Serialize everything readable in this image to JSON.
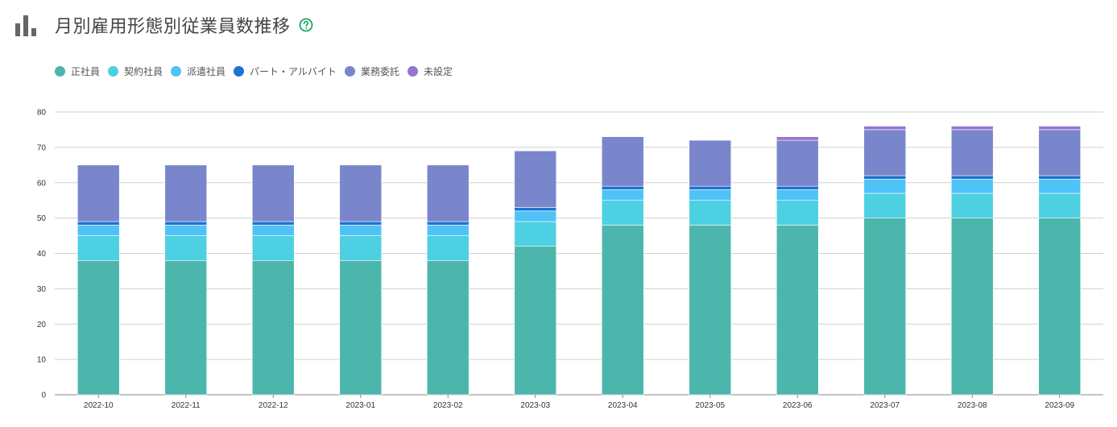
{
  "header": {
    "title": "月別雇用形態別従業員数推移",
    "chart_icon": "bar-chart-icon",
    "help_icon": "question-circle-icon"
  },
  "colors": {
    "正社員": "#4db6ac",
    "契約社員": "#4dd0e1",
    "派遣社員": "#4fc3f7",
    "パート・アルバイト": "#1e73d2",
    "業務委託": "#7986cb",
    "未設定": "#9575cd"
  },
  "chart_data": {
    "type": "bar",
    "stacked": true,
    "title": "月別雇用形態別従業員数推移",
    "xlabel": "",
    "ylabel": "",
    "ylim": [
      0,
      80
    ],
    "yticks": [
      0,
      10,
      20,
      30,
      40,
      50,
      60,
      70,
      80
    ],
    "grid": true,
    "legend_position": "top-left",
    "categories": [
      "2022-10",
      "2022-11",
      "2022-12",
      "2023-01",
      "2023-02",
      "2023-03",
      "2023-04",
      "2023-05",
      "2023-06",
      "2023-07",
      "2023-08",
      "2023-09"
    ],
    "series": [
      {
        "name": "正社員",
        "values": [
          38,
          38,
          38,
          38,
          38,
          42,
          48,
          48,
          48,
          50,
          50,
          50
        ]
      },
      {
        "name": "契約社員",
        "values": [
          7,
          7,
          7,
          7,
          7,
          7,
          7,
          7,
          7,
          7,
          7,
          7
        ]
      },
      {
        "name": "派遣社員",
        "values": [
          3,
          3,
          3,
          3,
          3,
          3,
          3,
          3,
          3,
          4,
          4,
          4
        ]
      },
      {
        "name": "パート・アルバイト",
        "values": [
          1,
          1,
          1,
          1,
          1,
          1,
          1,
          1,
          1,
          1,
          1,
          1
        ]
      },
      {
        "name": "業務委託",
        "values": [
          16,
          16,
          16,
          16,
          16,
          16,
          14,
          13,
          13,
          13,
          13,
          13
        ]
      },
      {
        "name": "未設定",
        "values": [
          0,
          0,
          0,
          0,
          0,
          0,
          0,
          0,
          1,
          1,
          1,
          1
        ]
      }
    ]
  }
}
